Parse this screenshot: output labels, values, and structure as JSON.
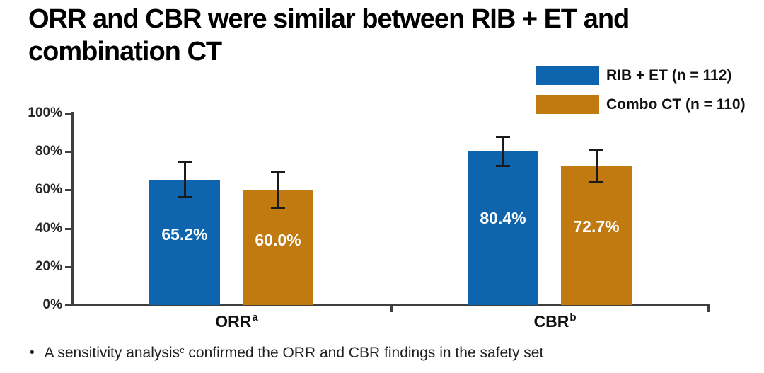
{
  "title": "ORR and CBR were similar between RIB + ET and combination CT",
  "legend": {
    "items": [
      {
        "label": "RIB + ET (n = 112)",
        "color": "#0e65ae"
      },
      {
        "label": "Combo CT (n = 110)",
        "color": "#c07a10"
      }
    ]
  },
  "footnote": {
    "bullet": "•",
    "text_before_sup": "A sensitivity analysis",
    "sup": "c",
    "text_after_sup": " confirmed the ORR and CBR findings in the safety set"
  },
  "chart_data": {
    "type": "bar",
    "categories": [
      {
        "label": "ORR",
        "sup": "a"
      },
      {
        "label": "CBR",
        "sup": "b"
      }
    ],
    "series": [
      {
        "name": "RIB + ET (n = 112)",
        "color": "#0e65ae",
        "values": [
          65.2,
          80.4
        ],
        "value_labels": [
          "65.2%",
          "80.4%"
        ],
        "ci_low": [
          56.2,
          72.4
        ],
        "ci_high": [
          74.5,
          87.9
        ]
      },
      {
        "name": "Combo CT (n = 110)",
        "color": "#c07a10",
        "values": [
          60.0,
          72.7
        ],
        "value_labels": [
          "60.0%",
          "72.7%"
        ],
        "ci_low": [
          50.4,
          64.0
        ],
        "ci_high": [
          69.9,
          81.3
        ]
      }
    ],
    "xlabel": "",
    "ylabel": "",
    "ylim": [
      0,
      100
    ],
    "yticks": [
      "0%",
      "20%",
      "40%",
      "60%",
      "80%",
      "100%"
    ],
    "ytick_values": [
      0,
      20,
      40,
      60,
      80,
      100
    ],
    "grid": false,
    "error_bars": true,
    "legend_position": "top-right"
  }
}
